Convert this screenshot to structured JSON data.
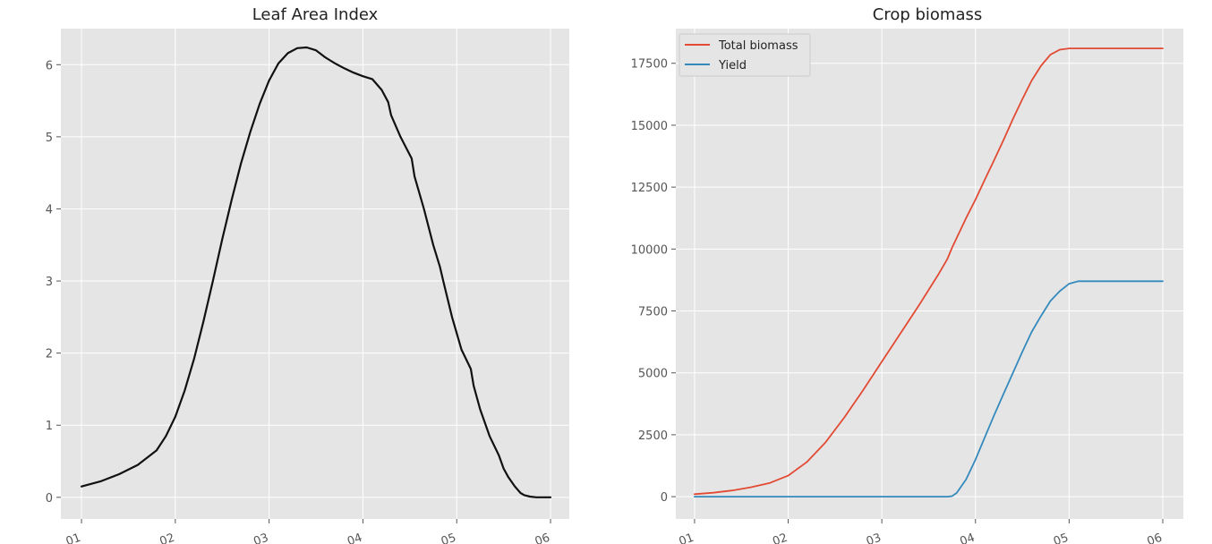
{
  "chart_data": [
    {
      "type": "line",
      "title": "Leaf Area Index",
      "xlabel": "",
      "ylabel": "",
      "x_tick_labels": [
        "01",
        "02",
        "03",
        "04",
        "05",
        "06"
      ],
      "y_tick_labels": [
        "0",
        "1",
        "2",
        "3",
        "4",
        "5",
        "6"
      ],
      "xlim": [
        0.78,
        6.2
      ],
      "ylim": [
        -0.3,
        6.5
      ],
      "grid": true,
      "legend": false,
      "series": [
        {
          "color": "#111111",
          "x": [
            1.0,
            1.2,
            1.4,
            1.6,
            1.8,
            1.9,
            2.0,
            2.1,
            2.2,
            2.3,
            2.4,
            2.5,
            2.6,
            2.7,
            2.8,
            2.9,
            3.0,
            3.1,
            3.2,
            3.3,
            3.4,
            3.5,
            3.55,
            3.6,
            3.65,
            3.7,
            3.8,
            3.9,
            4.0,
            4.1,
            4.2,
            4.27,
            4.3,
            4.4,
            4.52,
            4.55,
            4.65,
            4.75,
            4.82,
            4.86,
            4.95,
            5.05,
            5.15,
            5.18,
            5.25,
            5.35,
            5.45,
            5.5,
            5.55,
            5.62,
            5.68,
            5.72,
            5.78,
            5.85,
            6.0
          ],
          "y": [
            0.15,
            0.22,
            0.32,
            0.45,
            0.65,
            0.85,
            1.12,
            1.48,
            1.92,
            2.44,
            3.0,
            3.58,
            4.12,
            4.63,
            5.07,
            5.46,
            5.78,
            6.02,
            6.16,
            6.23,
            6.24,
            6.2,
            6.15,
            6.1,
            6.06,
            6.02,
            5.95,
            5.89,
            5.84,
            5.8,
            5.65,
            5.48,
            5.3,
            5.0,
            4.7,
            4.45,
            4.0,
            3.5,
            3.2,
            2.98,
            2.5,
            2.05,
            1.78,
            1.55,
            1.22,
            0.85,
            0.58,
            0.4,
            0.28,
            0.15,
            0.06,
            0.03,
            0.01,
            0.0,
            0.0
          ]
        }
      ]
    },
    {
      "type": "line",
      "title": "Crop biomass",
      "xlabel": "",
      "ylabel": "",
      "x_tick_labels": [
        "01",
        "02",
        "03",
        "04",
        "05",
        "06"
      ],
      "y_tick_labels": [
        "0",
        "2500",
        "5000",
        "7500",
        "10000",
        "12500",
        "15000",
        "17500"
      ],
      "xlim": [
        0.8,
        6.22
      ],
      "ylim": [
        -900,
        18900
      ],
      "grid": true,
      "legend": "upper left",
      "series": [
        {
          "name": "Total biomass",
          "color": "#E24A33",
          "x": [
            1.0,
            1.2,
            1.4,
            1.6,
            1.8,
            2.0,
            2.2,
            2.4,
            2.6,
            2.8,
            3.0,
            3.2,
            3.4,
            3.6,
            3.7,
            3.75,
            3.8,
            3.9,
            4.0,
            4.1,
            4.2,
            4.3,
            4.4,
            4.5,
            4.6,
            4.7,
            4.8,
            4.9,
            5.0,
            5.1,
            5.2,
            5.3,
            5.4,
            5.5,
            6.0
          ],
          "y": [
            100,
            160,
            250,
            380,
            550,
            850,
            1400,
            2200,
            3200,
            4300,
            5450,
            6600,
            7750,
            8950,
            9600,
            10050,
            10450,
            11250,
            12000,
            12800,
            13600,
            14400,
            15250,
            16050,
            16800,
            17400,
            17850,
            18050,
            18100,
            18100,
            18100,
            18100,
            18100,
            18100,
            18100
          ]
        },
        {
          "name": "Yield",
          "color": "#348ABD",
          "x": [
            1.0,
            3.7,
            3.75,
            3.8,
            3.9,
            4.0,
            4.1,
            4.2,
            4.3,
            4.4,
            4.5,
            4.6,
            4.7,
            4.8,
            4.9,
            5.0,
            5.1,
            5.2,
            5.4,
            6.0
          ],
          "y": [
            0,
            0,
            20,
            150,
            700,
            1500,
            2400,
            3300,
            4150,
            5000,
            5850,
            6650,
            7300,
            7900,
            8300,
            8600,
            8700,
            8700,
            8700,
            8700
          ]
        }
      ]
    }
  ]
}
